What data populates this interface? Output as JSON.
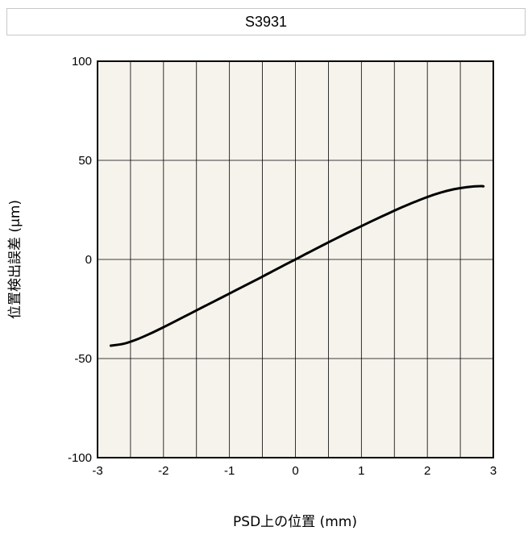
{
  "chart_data": {
    "type": "line",
    "title": "S3931",
    "xlabel": "PSD上の位置 (mm)",
    "ylabel": "位置検出誤差 (μm)",
    "xlim": [
      -3,
      3
    ],
    "ylim": [
      -100,
      100
    ],
    "xticks": [
      -3,
      -2,
      -1,
      0,
      1,
      2,
      3
    ],
    "yticks": [
      -100,
      -50,
      0,
      50,
      100
    ],
    "x_minor_gridlines": [
      -2.5,
      -1.5,
      -0.5,
      0.5,
      1.5,
      2.5
    ],
    "grid": true,
    "background_color": "#f5f3eb",
    "line_color": "#000000",
    "series": [
      {
        "x": [
          -2.8,
          -2.6,
          -2.4,
          -2.2,
          -2.0,
          -1.8,
          -1.6,
          -1.4,
          -1.2,
          -1.0,
          -0.8,
          -0.6,
          -0.4,
          -0.2,
          0.0,
          0.2,
          0.4,
          0.6,
          0.8,
          1.0,
          1.2,
          1.4,
          1.6,
          1.8,
          2.0,
          2.2,
          2.4,
          2.6,
          2.8,
          2.85
        ],
        "y": [
          -43.5,
          -42.5,
          -40.3,
          -37.4,
          -34.2,
          -30.8,
          -27.4,
          -24.0,
          -20.6,
          -17.2,
          -13.8,
          -10.4,
          -6.9,
          -3.4,
          0.0,
          3.5,
          6.9,
          10.3,
          13.6,
          16.8,
          20.0,
          23.1,
          26.1,
          28.9,
          31.5,
          33.7,
          35.4,
          36.5,
          37.0,
          36.9
        ]
      }
    ]
  }
}
